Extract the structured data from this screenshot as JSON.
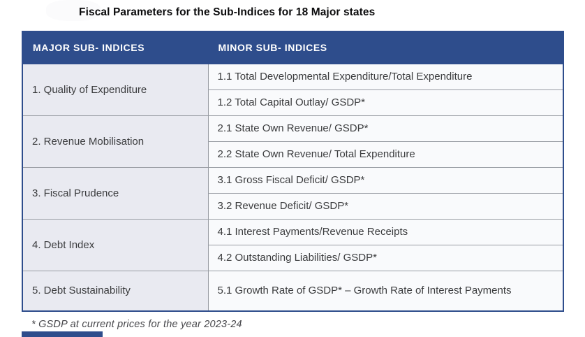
{
  "title": "Fiscal Parameters for the Sub-Indices for 18 Major states",
  "table": {
    "headers": [
      "MAJOR SUB- INDICES",
      "MINOR SUB- INDICES"
    ],
    "groups": [
      {
        "major": "1. Quality of Expenditure",
        "minors": [
          "1.1 Total Developmental Expenditure/Total Expenditure",
          "1.2 Total Capital Outlay/ GSDP*"
        ]
      },
      {
        "major": "2. Revenue Mobilisation",
        "minors": [
          "2.1 State Own Revenue/ GSDP*",
          "2.2 State Own Revenue/ Total Expenditure"
        ]
      },
      {
        "major": "3. Fiscal Prudence",
        "minors": [
          "3.1 Gross Fiscal Deficit/ GSDP*",
          "3.2 Revenue Deficit/ GSDP*"
        ]
      },
      {
        "major": "4. Debt Index",
        "minors": [
          "4.1 Interest Payments/Revenue Receipts",
          "4.2 Outstanding Liabilities/ GSDP*"
        ]
      },
      {
        "major": "5. Debt Sustainability",
        "minors": [
          "5.1 Growth Rate of GSDP* – Growth Rate of Interest Payments"
        ]
      }
    ]
  },
  "footnote": "* GSDP at current prices for the year 2023-24",
  "colors": {
    "header_bg": "#2e4d8c",
    "table_border": "#2e4d8c",
    "major_cell_bg": "#e9eaf1",
    "minor_cell_bg": "#f9fafc",
    "grid_line": "#989ca3",
    "title_text": "#0c0c0d",
    "body_text": "#3b3c3e"
  }
}
